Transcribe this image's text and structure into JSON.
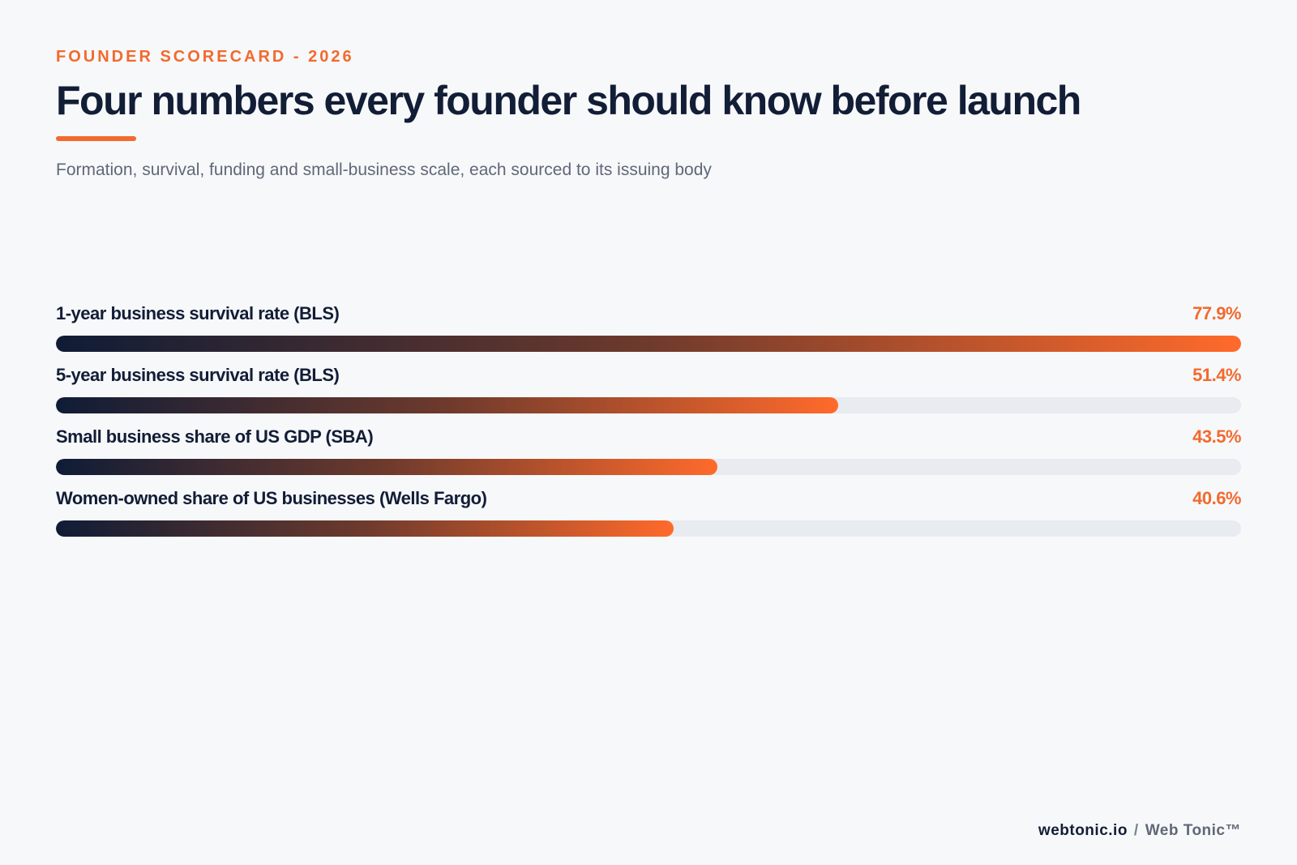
{
  "header": {
    "eyebrow": "FOUNDER SCORECARD - 2026",
    "title": "Four numbers every founder should know before launch",
    "subtitle": "Formation, survival, funding and small-business scale, each sourced to its issuing body"
  },
  "colors": {
    "accent": "#f26a2e",
    "ink": "#121d36",
    "track": "#e8ebef",
    "gradient_start": "#0f1c36",
    "gradient_end": "#ff6a2b"
  },
  "chart_data": {
    "type": "bar",
    "orientation": "horizontal",
    "title": "Four numbers every founder should know before launch",
    "subtitle": "Formation, survival, funding and small-business scale, each sourced to its issuing body",
    "xlabel": "",
    "ylabel": "",
    "xlim": [
      0,
      77.9
    ],
    "grid": false,
    "legend": "none",
    "categories": [
      "1-year business survival rate (BLS)",
      "5-year business survival rate (BLS)",
      "Small business share of US GDP (SBA)",
      "Women-owned share of US businesses (Wells Fargo)"
    ],
    "values": [
      77.9,
      51.4,
      43.5,
      40.6
    ],
    "value_labels": [
      "77.9%",
      "51.4%",
      "43.5%",
      "40.6%"
    ]
  },
  "footer": {
    "domain": "webtonic.io",
    "separator": "/",
    "brand": "Web Tonic™"
  }
}
